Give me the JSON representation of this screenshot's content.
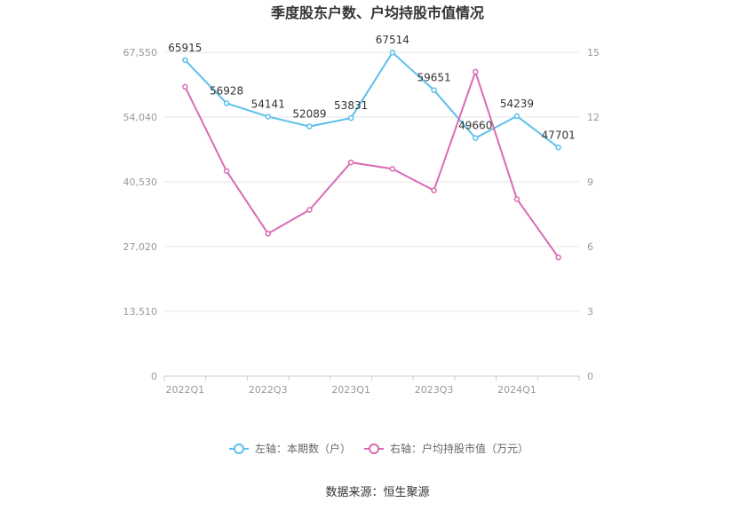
{
  "chart_data": {
    "type": "line",
    "title": "季度股东户数、户均持股市值情况",
    "categories": [
      "2022Q1",
      "2022Q2",
      "2022Q3",
      "2022Q4",
      "2023Q1",
      "2023Q2",
      "2023Q3",
      "2023Q4",
      "2024Q1",
      "2024Q2"
    ],
    "x_tick_labels": [
      "2022Q1",
      "2022Q3",
      "2023Q1",
      "2023Q3",
      "2024Q1"
    ],
    "left_axis": {
      "ylim": [
        0,
        67550
      ],
      "ticks": [
        "0",
        "13,510",
        "27,020",
        "40,530",
        "54,040",
        "67,550"
      ]
    },
    "right_axis": {
      "ylim": [
        0,
        15
      ],
      "ticks": [
        "0",
        "3",
        "6",
        "9",
        "12",
        "15"
      ]
    },
    "series": [
      {
        "name": "左轴：本期数（户）",
        "axis": "left",
        "color": "#5bc0eb",
        "values": [
          65915,
          56928,
          54141,
          52089,
          53831,
          67514,
          59651,
          49660,
          54239,
          47701
        ],
        "labels": [
          "65915",
          "56928",
          "54141",
          "52089",
          "53831",
          "67514",
          "59651",
          "49660",
          "54239",
          "47701"
        ]
      },
      {
        "name": "右轴：户均持股市值（万元）",
        "axis": "right",
        "color": "#d96bb5",
        "values": [
          13.4,
          9.5,
          6.6,
          7.7,
          9.9,
          9.6,
          8.6,
          14.1,
          8.2,
          5.5
        ]
      }
    ],
    "legend_position": "bottom",
    "grid": true
  },
  "source": "数据来源：恒生聚源"
}
